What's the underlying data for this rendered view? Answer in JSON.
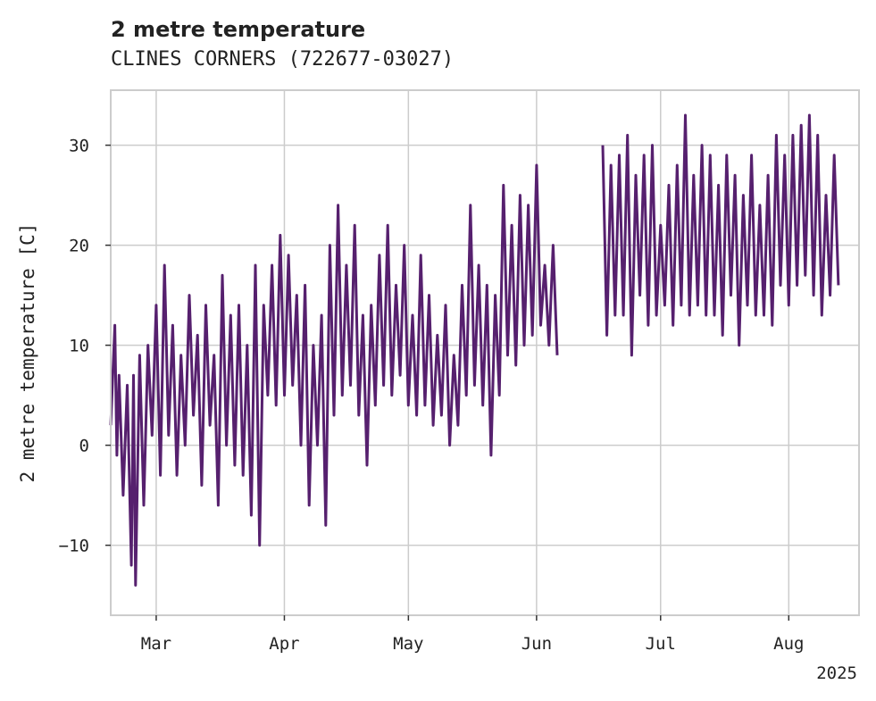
{
  "chart_data": {
    "type": "line",
    "title": "2 metre temperature",
    "subtitle": "CLINES CORNERS (722677-03027)",
    "ylabel": "2 metre temperature [C]",
    "xlabel": "",
    "year_label": "2025",
    "xlim": [
      "2025-02-18",
      "2025-08-18"
    ],
    "ylim": [
      -17,
      35.5
    ],
    "y_ticks": [
      30,
      20,
      10,
      0,
      -10
    ],
    "y_tick_labels": [
      "30",
      "20",
      "10",
      "0",
      "−10"
    ],
    "x_ticks": [
      {
        "date": "2025-03-01",
        "label": "Mar"
      },
      {
        "date": "2025-04-01",
        "label": "Apr"
      },
      {
        "date": "2025-05-01",
        "label": "May"
      },
      {
        "date": "2025-06-01",
        "label": "Jun"
      },
      {
        "date": "2025-07-01",
        "label": "Jul"
      },
      {
        "date": "2025-08-01",
        "label": "Aug"
      }
    ],
    "grid": true,
    "line_color": "#56206e",
    "series": [
      {
        "segments": [
          {
            "points": [
              [
                "2025-02-18",
                2
              ],
              [
                "2025-02-19",
                12
              ],
              [
                "2025-02-19T12",
                -1
              ],
              [
                "2025-02-20",
                7
              ],
              [
                "2025-02-21",
                -5
              ],
              [
                "2025-02-22",
                6
              ],
              [
                "2025-02-23",
                -12
              ],
              [
                "2025-02-23T12",
                7
              ],
              [
                "2025-02-24",
                -14
              ],
              [
                "2025-02-25",
                9
              ],
              [
                "2025-02-26",
                -6
              ],
              [
                "2025-02-27",
                10
              ],
              [
                "2025-02-28",
                1
              ],
              [
                "2025-03-01",
                14
              ],
              [
                "2025-03-02",
                -3
              ],
              [
                "2025-03-03",
                18
              ],
              [
                "2025-03-04",
                1
              ],
              [
                "2025-03-05",
                12
              ],
              [
                "2025-03-06",
                -3
              ],
              [
                "2025-03-07",
                9
              ],
              [
                "2025-03-08",
                0
              ],
              [
                "2025-03-09",
                15
              ],
              [
                "2025-03-10",
                3
              ],
              [
                "2025-03-11",
                11
              ],
              [
                "2025-03-12",
                -4
              ],
              [
                "2025-03-13",
                14
              ],
              [
                "2025-03-14",
                2
              ],
              [
                "2025-03-15",
                9
              ],
              [
                "2025-03-16",
                -6
              ],
              [
                "2025-03-17",
                17
              ],
              [
                "2025-03-18",
                0
              ],
              [
                "2025-03-19",
                13
              ],
              [
                "2025-03-20",
                -2
              ],
              [
                "2025-03-21",
                14
              ],
              [
                "2025-03-22",
                -3
              ],
              [
                "2025-03-23",
                10
              ],
              [
                "2025-03-24",
                -7
              ],
              [
                "2025-03-25",
                18
              ],
              [
                "2025-03-26",
                -10
              ],
              [
                "2025-03-27",
                14
              ],
              [
                "2025-03-28",
                5
              ],
              [
                "2025-03-29",
                18
              ],
              [
                "2025-03-30",
                4
              ],
              [
                "2025-03-31",
                21
              ],
              [
                "2025-04-01",
                5
              ],
              [
                "2025-04-02",
                19
              ],
              [
                "2025-04-03",
                6
              ],
              [
                "2025-04-04",
                15
              ],
              [
                "2025-04-05",
                0
              ],
              [
                "2025-04-06",
                16
              ],
              [
                "2025-04-07",
                -6
              ],
              [
                "2025-04-08",
                10
              ],
              [
                "2025-04-09",
                0
              ],
              [
                "2025-04-10",
                13
              ],
              [
                "2025-04-11",
                -8
              ],
              [
                "2025-04-12",
                20
              ],
              [
                "2025-04-13",
                3
              ],
              [
                "2025-04-14",
                24
              ],
              [
                "2025-04-15",
                5
              ],
              [
                "2025-04-16",
                18
              ],
              [
                "2025-04-17",
                6
              ],
              [
                "2025-04-18",
                22
              ],
              [
                "2025-04-19",
                3
              ],
              [
                "2025-04-20",
                13
              ],
              [
                "2025-04-21",
                -2
              ],
              [
                "2025-04-22",
                14
              ],
              [
                "2025-04-23",
                4
              ],
              [
                "2025-04-24",
                19
              ],
              [
                "2025-04-25",
                6
              ],
              [
                "2025-04-26",
                22
              ],
              [
                "2025-04-27",
                5
              ],
              [
                "2025-04-28",
                16
              ],
              [
                "2025-04-29",
                7
              ],
              [
                "2025-04-30",
                20
              ],
              [
                "2025-05-01",
                4
              ],
              [
                "2025-05-02",
                13
              ],
              [
                "2025-05-03",
                3
              ],
              [
                "2025-05-04",
                19
              ],
              [
                "2025-05-05",
                4
              ],
              [
                "2025-05-06",
                15
              ],
              [
                "2025-05-07",
                2
              ],
              [
                "2025-05-08",
                11
              ],
              [
                "2025-05-09",
                3
              ],
              [
                "2025-05-10",
                14
              ],
              [
                "2025-05-11",
                0
              ],
              [
                "2025-05-12",
                9
              ],
              [
                "2025-05-13",
                2
              ],
              [
                "2025-05-14",
                16
              ],
              [
                "2025-05-15",
                5
              ],
              [
                "2025-05-16",
                24
              ],
              [
                "2025-05-17",
                6
              ],
              [
                "2025-05-18",
                18
              ],
              [
                "2025-05-19",
                4
              ],
              [
                "2025-05-20",
                16
              ],
              [
                "2025-05-21",
                -1
              ],
              [
                "2025-05-22",
                15
              ],
              [
                "2025-05-23",
                5
              ],
              [
                "2025-05-24",
                26
              ],
              [
                "2025-05-25",
                9
              ],
              [
                "2025-05-26",
                22
              ],
              [
                "2025-05-27",
                8
              ],
              [
                "2025-05-28",
                25
              ],
              [
                "2025-05-29",
                10
              ],
              [
                "2025-05-30",
                24
              ],
              [
                "2025-05-31",
                11
              ],
              [
                "2025-06-01",
                28
              ],
              [
                "2025-06-02",
                12
              ],
              [
                "2025-06-03",
                18
              ],
              [
                "2025-06-04",
                10
              ],
              [
                "2025-06-05",
                20
              ],
              [
                "2025-06-06",
                9
              ]
            ]
          },
          {
            "points": [
              [
                "2025-06-17",
                30
              ],
              [
                "2025-06-18",
                11
              ],
              [
                "2025-06-19",
                28
              ],
              [
                "2025-06-20",
                13
              ],
              [
                "2025-06-21",
                29
              ],
              [
                "2025-06-22",
                13
              ],
              [
                "2025-06-23",
                31
              ],
              [
                "2025-06-24",
                9
              ],
              [
                "2025-06-25",
                27
              ],
              [
                "2025-06-26",
                15
              ],
              [
                "2025-06-27",
                29
              ],
              [
                "2025-06-28",
                12
              ],
              [
                "2025-06-29",
                30
              ],
              [
                "2025-06-30",
                13
              ],
              [
                "2025-07-01",
                22
              ],
              [
                "2025-07-02",
                14
              ],
              [
                "2025-07-03",
                26
              ],
              [
                "2025-07-04",
                12
              ],
              [
                "2025-07-05",
                28
              ],
              [
                "2025-07-06",
                14
              ],
              [
                "2025-07-07",
                33
              ],
              [
                "2025-07-08",
                13
              ],
              [
                "2025-07-09",
                27
              ],
              [
                "2025-07-10",
                14
              ],
              [
                "2025-07-11",
                30
              ],
              [
                "2025-07-12",
                13
              ],
              [
                "2025-07-13",
                29
              ],
              [
                "2025-07-14",
                13
              ],
              [
                "2025-07-15",
                26
              ],
              [
                "2025-07-16",
                11
              ],
              [
                "2025-07-17",
                29
              ],
              [
                "2025-07-18",
                15
              ],
              [
                "2025-07-19",
                27
              ],
              [
                "2025-07-20",
                10
              ],
              [
                "2025-07-21",
                25
              ],
              [
                "2025-07-22",
                14
              ],
              [
                "2025-07-23",
                29
              ],
              [
                "2025-07-24",
                13
              ],
              [
                "2025-07-25",
                24
              ],
              [
                "2025-07-26",
                13
              ],
              [
                "2025-07-27",
                27
              ],
              [
                "2025-07-28",
                12
              ],
              [
                "2025-07-29",
                31
              ],
              [
                "2025-07-30",
                16
              ],
              [
                "2025-07-31",
                29
              ],
              [
                "2025-08-01",
                14
              ],
              [
                "2025-08-02",
                31
              ],
              [
                "2025-08-03",
                16
              ],
              [
                "2025-08-04",
                32
              ],
              [
                "2025-08-05",
                17
              ],
              [
                "2025-08-06",
                33
              ],
              [
                "2025-08-07",
                15
              ],
              [
                "2025-08-08",
                31
              ],
              [
                "2025-08-09",
                13
              ],
              [
                "2025-08-10",
                25
              ],
              [
                "2025-08-11",
                15
              ],
              [
                "2025-08-12",
                29
              ],
              [
                "2025-08-13",
                16
              ]
            ]
          }
        ]
      }
    ]
  }
}
